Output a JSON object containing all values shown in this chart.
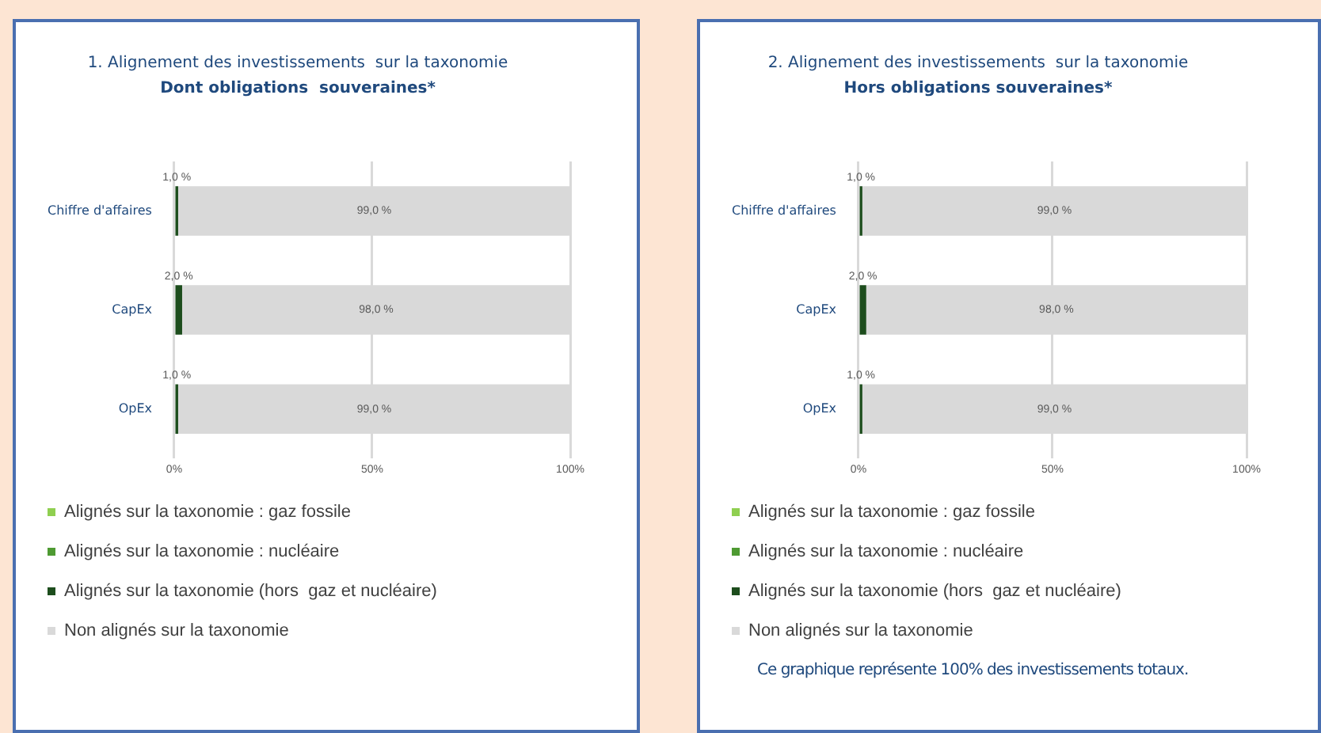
{
  "chart_data": [
    {
      "type": "bar",
      "orientation": "horizontal",
      "stacked": true,
      "title": "1. Alignement des investissements  sur la taxonomie",
      "subtitle": "Dont obligations  souveraines*",
      "categories": [
        "Chiffre d'affaires",
        "CapEx",
        "OpEx"
      ],
      "xlim": [
        0,
        100
      ],
      "xticks": [
        {
          "value": 0,
          "label": "0%"
        },
        {
          "value": 50,
          "label": "50%"
        },
        {
          "value": 100,
          "label": "100%"
        }
      ],
      "grid": "x",
      "legend": "bottom",
      "series": [
        {
          "name": "Alignés sur la taxonomie : gaz fossile",
          "color": "#8fcf50",
          "values": [
            0,
            0,
            0
          ]
        },
        {
          "name": "Alignés sur la taxonomie : nucléaire",
          "color": "#4e9a32",
          "values": [
            0,
            0,
            0
          ]
        },
        {
          "name": "Alignés sur la taxonomie (hors  gaz et nucléaire)",
          "color": "#1d4d1d",
          "values": [
            1,
            2,
            1
          ],
          "value_labels": [
            "1,0 %",
            "2,0 %",
            "1,0 %"
          ]
        },
        {
          "name": "Non alignés sur la taxonomie",
          "color": "#d9d9d9",
          "values": [
            99,
            98,
            99
          ],
          "value_labels": [
            "99,0 %",
            "98,0 %",
            "99,0 %"
          ]
        }
      ]
    },
    {
      "type": "bar",
      "orientation": "horizontal",
      "stacked": true,
      "title": "2. Alignement des investissements  sur la taxonomie",
      "subtitle": "Hors obligations souveraines*",
      "categories": [
        "Chiffre d'affaires",
        "CapEx",
        "OpEx"
      ],
      "xlim": [
        0,
        100
      ],
      "xticks": [
        {
          "value": 0,
          "label": "0%"
        },
        {
          "value": 50,
          "label": "50%"
        },
        {
          "value": 100,
          "label": "100%"
        }
      ],
      "grid": "x",
      "legend": "bottom",
      "annotations": [
        "Ce graphique représente 100% des investissements totaux."
      ],
      "series": [
        {
          "name": "Alignés sur la taxonomie : gaz fossile",
          "color": "#8fcf50",
          "values": [
            0,
            0,
            0
          ]
        },
        {
          "name": "Alignés sur la taxonomie : nucléaire",
          "color": "#4e9a32",
          "values": [
            0,
            0,
            0
          ]
        },
        {
          "name": "Alignés sur la taxonomie (hors  gaz et nucléaire)",
          "color": "#1d4d1d",
          "values": [
            1,
            2,
            1
          ],
          "value_labels": [
            "1,0 %",
            "2,0 %",
            "1,0 %"
          ]
        },
        {
          "name": "Non alignés sur la taxonomie",
          "color": "#d9d9d9",
          "values": [
            99,
            98,
            99
          ],
          "value_labels": [
            "99,0 %",
            "98,0 %",
            "99,0 %"
          ]
        }
      ]
    }
  ]
}
